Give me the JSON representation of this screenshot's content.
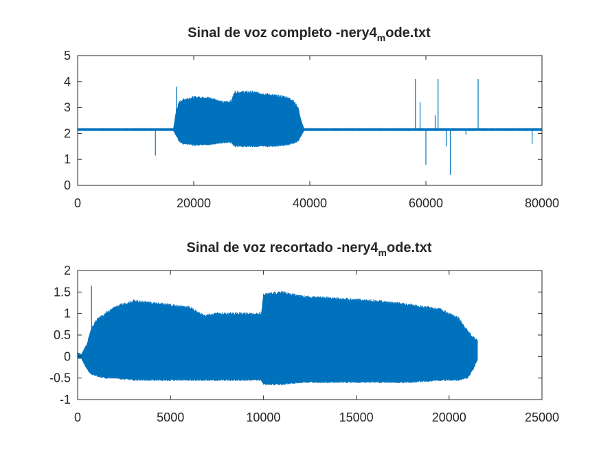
{
  "colors": {
    "series": "#0072bd",
    "axes": "#262626",
    "background": "#ffffff"
  },
  "chart_data": [
    {
      "type": "line",
      "title_main": "Sinal de voz completo -nery4",
      "title_sub": "m",
      "title_tail": "ode.txt",
      "xlim": [
        0,
        80000
      ],
      "ylim": [
        0,
        5
      ],
      "xticks": [
        0,
        20000,
        40000,
        60000,
        80000
      ],
      "yticks": [
        0,
        1,
        2,
        3,
        4,
        5
      ],
      "xtick_labels": [
        "0",
        "20000",
        "40000",
        "60000",
        "80000"
      ],
      "ytick_labels": [
        "0",
        "1",
        "2",
        "3",
        "4",
        "5"
      ],
      "grid": false,
      "baseline": 2.15,
      "envelope": {
        "x": [
          0,
          16500,
          17000,
          17500,
          18000,
          20000,
          22000,
          24000,
          25000,
          26500,
          27000,
          30000,
          33000,
          36000,
          37000,
          38000,
          38500,
          39000,
          79800
        ],
        "upper": [
          2.2,
          2.2,
          2.9,
          3.2,
          3.3,
          3.4,
          3.4,
          3.3,
          3.2,
          3.25,
          3.6,
          3.6,
          3.5,
          3.4,
          3.3,
          3.0,
          2.5,
          2.2,
          2.2
        ],
        "lower": [
          2.1,
          2.1,
          1.9,
          1.7,
          1.6,
          1.55,
          1.55,
          1.6,
          1.65,
          1.65,
          1.5,
          1.5,
          1.5,
          1.55,
          1.6,
          1.7,
          1.9,
          2.1,
          2.1
        ]
      },
      "spikes": [
        {
          "x": 13400,
          "y": 1.15
        },
        {
          "x": 17000,
          "y": 3.8
        },
        {
          "x": 58200,
          "y": 4.1
        },
        {
          "x": 59000,
          "y": 3.2
        },
        {
          "x": 60000,
          "y": 0.8
        },
        {
          "x": 61600,
          "y": 2.7
        },
        {
          "x": 62100,
          "y": 4.1
        },
        {
          "x": 63500,
          "y": 1.5
        },
        {
          "x": 64200,
          "y": 0.4
        },
        {
          "x": 66900,
          "y": 1.95
        },
        {
          "x": 69000,
          "y": 4.1
        },
        {
          "x": 78300,
          "y": 1.6
        }
      ]
    },
    {
      "type": "line",
      "title_main": "Sinal de voz recortado -nery4",
      "title_sub": "m",
      "title_tail": "ode.txt",
      "xlim": [
        0,
        25000
      ],
      "ylim": [
        -1,
        2
      ],
      "xticks": [
        0,
        5000,
        10000,
        15000,
        20000,
        25000
      ],
      "yticks": [
        -1,
        -0.5,
        0,
        0.5,
        1,
        1.5,
        2
      ],
      "xtick_labels": [
        "0",
        "5000",
        "10000",
        "15000",
        "20000",
        "25000"
      ],
      "ytick_labels": [
        "-1",
        "-0.5",
        "0",
        "0.5",
        "1",
        "1.5",
        "2"
      ],
      "grid": false,
      "envelope": {
        "x": [
          0,
          200,
          500,
          700,
          1000,
          1500,
          2000,
          3000,
          4000,
          5000,
          6000,
          6800,
          7500,
          8500,
          9900,
          10000,
          11000,
          12000,
          14000,
          16000,
          18000,
          19500,
          20500,
          21000,
          21300,
          21500
        ],
        "upper": [
          0.1,
          0.05,
          0.3,
          0.6,
          0.85,
          1.0,
          1.15,
          1.3,
          1.25,
          1.2,
          1.15,
          0.95,
          1.0,
          1.0,
          1.0,
          1.45,
          1.5,
          1.4,
          1.35,
          1.3,
          1.2,
          1.1,
          0.9,
          0.6,
          0.45,
          0.4
        ],
        "lower": [
          -0.05,
          -0.05,
          -0.3,
          -0.4,
          -0.45,
          -0.5,
          -0.5,
          -0.55,
          -0.55,
          -0.55,
          -0.55,
          -0.55,
          -0.55,
          -0.55,
          -0.55,
          -0.65,
          -0.65,
          -0.6,
          -0.6,
          -0.6,
          -0.6,
          -0.55,
          -0.55,
          -0.5,
          -0.3,
          -0.1
        ]
      },
      "spikes": [
        {
          "x": 750,
          "y": 1.65
        }
      ]
    }
  ]
}
